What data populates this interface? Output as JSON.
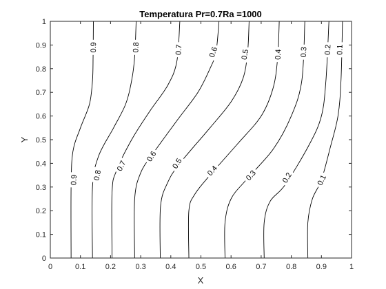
{
  "chart_data": {
    "type": "contour",
    "title": "Temperatura Pr=0.7Ra =1000",
    "xlabel": "X",
    "ylabel": "Y",
    "xlim": [
      0,
      1
    ],
    "ylim": [
      0,
      1
    ],
    "xticks": [
      "0",
      "0.1",
      "0.2",
      "0.3",
      "0.4",
      "0.5",
      "0.6",
      "0.7",
      "0.8",
      "0.9",
      "1"
    ],
    "yticks": [
      "0",
      "0.1",
      "0.2",
      "0.3",
      "0.4",
      "0.5",
      "0.6",
      "0.7",
      "0.8",
      "0.9",
      "1"
    ],
    "grid": false,
    "line_color": "#000000",
    "levels": [
      {
        "level": "0.9",
        "points": [
          [
            0.069,
            0
          ],
          [
            0.069,
            0.3
          ],
          [
            0.075,
            0.45
          ],
          [
            0.1,
            0.55
          ],
          [
            0.13,
            0.65
          ],
          [
            0.14,
            0.75
          ],
          [
            0.142,
            0.85
          ],
          [
            0.143,
            1
          ]
        ],
        "labels": [
          [
            0.077,
            0.33
          ],
          [
            0.142,
            0.89
          ]
        ]
      },
      {
        "level": "0.8",
        "points": [
          [
            0.14,
            0
          ],
          [
            0.14,
            0.3
          ],
          [
            0.16,
            0.43
          ],
          [
            0.21,
            0.55
          ],
          [
            0.25,
            0.65
          ],
          [
            0.27,
            0.75
          ],
          [
            0.28,
            0.85
          ],
          [
            0.285,
            1
          ]
        ],
        "labels": [
          [
            0.155,
            0.35
          ],
          [
            0.283,
            0.89
          ]
        ]
      },
      {
        "level": "0.7",
        "points": [
          [
            0.205,
            0
          ],
          [
            0.205,
            0.28
          ],
          [
            0.22,
            0.37
          ],
          [
            0.27,
            0.5
          ],
          [
            0.33,
            0.62
          ],
          [
            0.39,
            0.73
          ],
          [
            0.42,
            0.83
          ],
          [
            0.43,
            1
          ]
        ],
        "labels": [
          [
            0.235,
            0.39
          ],
          [
            0.425,
            0.88
          ]
        ]
      },
      {
        "level": "0.6",
        "points": [
          [
            0.28,
            0
          ],
          [
            0.28,
            0.25
          ],
          [
            0.3,
            0.36
          ],
          [
            0.34,
            0.44
          ],
          [
            0.42,
            0.58
          ],
          [
            0.49,
            0.7
          ],
          [
            0.53,
            0.8
          ],
          [
            0.55,
            0.87
          ],
          [
            0.56,
            1
          ]
        ],
        "labels": [
          [
            0.335,
            0.43
          ],
          [
            0.54,
            0.87
          ]
        ]
      },
      {
        "level": "0.5",
        "points": [
          [
            0.365,
            0
          ],
          [
            0.366,
            0.22
          ],
          [
            0.39,
            0.32
          ],
          [
            0.43,
            0.4
          ],
          [
            0.53,
            0.55
          ],
          [
            0.6,
            0.66
          ],
          [
            0.64,
            0.76
          ],
          [
            0.655,
            0.87
          ],
          [
            0.66,
            1
          ]
        ],
        "labels": [
          [
            0.42,
            0.4
          ],
          [
            0.645,
            0.86
          ]
        ]
      },
      {
        "level": "0.4",
        "points": [
          [
            0.46,
            0
          ],
          [
            0.46,
            0.2
          ],
          [
            0.48,
            0.27
          ],
          [
            0.53,
            0.35
          ],
          [
            0.62,
            0.48
          ],
          [
            0.7,
            0.6
          ],
          [
            0.74,
            0.72
          ],
          [
            0.755,
            0.85
          ],
          [
            0.76,
            1
          ]
        ],
        "labels": [
          [
            0.537,
            0.37
          ],
          [
            0.755,
            0.86
          ]
        ]
      },
      {
        "level": "0.3",
        "points": [
          [
            0.58,
            0
          ],
          [
            0.58,
            0.15
          ],
          [
            0.6,
            0.25
          ],
          [
            0.65,
            0.33
          ],
          [
            0.74,
            0.46
          ],
          [
            0.8,
            0.6
          ],
          [
            0.835,
            0.75
          ],
          [
            0.845,
            1
          ]
        ],
        "labels": [
          [
            0.665,
            0.35
          ],
          [
            0.84,
            0.87
          ]
        ]
      },
      {
        "level": "0.2",
        "points": [
          [
            0.71,
            0
          ],
          [
            0.71,
            0.15
          ],
          [
            0.73,
            0.24
          ],
          [
            0.78,
            0.31
          ],
          [
            0.86,
            0.48
          ],
          [
            0.9,
            0.6
          ],
          [
            0.915,
            0.75
          ],
          [
            0.925,
            1
          ]
        ],
        "labels": [
          [
            0.785,
            0.34
          ],
          [
            0.92,
            0.88
          ]
        ]
      },
      {
        "level": "0.1",
        "points": [
          [
            0.855,
            0
          ],
          [
            0.855,
            0.15
          ],
          [
            0.87,
            0.25
          ],
          [
            0.9,
            0.33
          ],
          [
            0.93,
            0.47
          ],
          [
            0.955,
            0.6
          ],
          [
            0.965,
            0.75
          ],
          [
            0.97,
            1
          ]
        ],
        "labels": [
          [
            0.9,
            0.33
          ],
          [
            0.96,
            0.88
          ]
        ]
      }
    ]
  }
}
